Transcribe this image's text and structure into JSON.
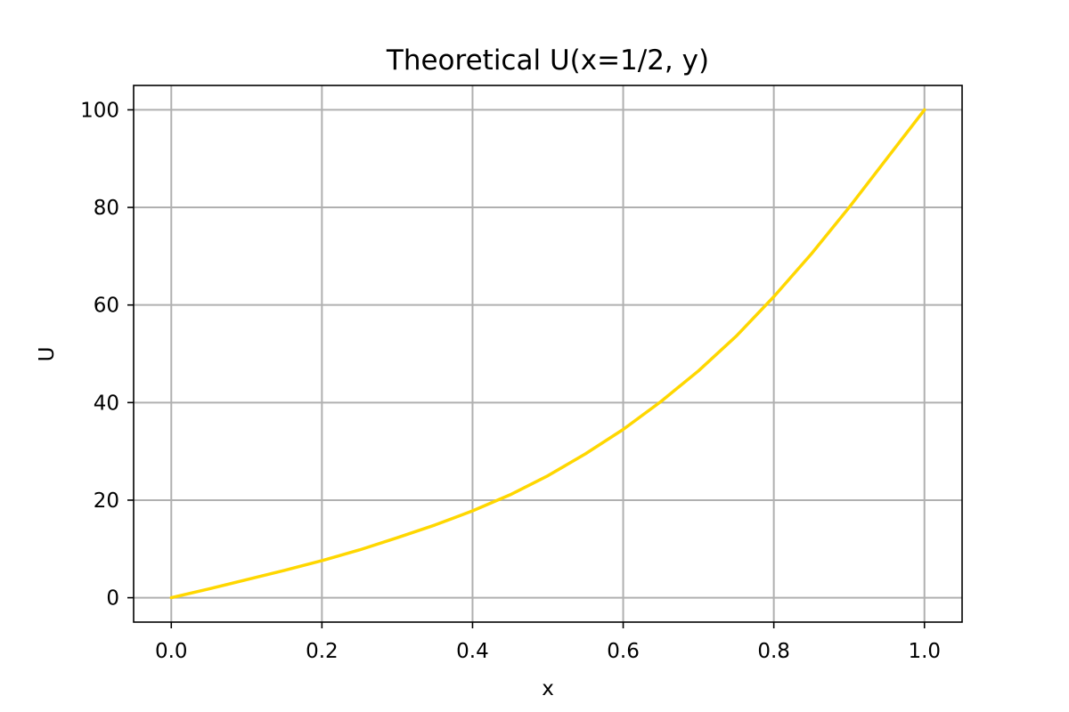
{
  "chart_data": {
    "type": "line",
    "title": "Theoretical U(x=1/2, y)",
    "xlabel": "x",
    "ylabel": "U",
    "xlim": [
      -0.05,
      1.05
    ],
    "ylim": [
      -5,
      105
    ],
    "xticks": [
      0.0,
      0.2,
      0.4,
      0.6,
      0.8,
      1.0
    ],
    "xtick_labels": [
      "0.0",
      "0.2",
      "0.4",
      "0.6",
      "0.8",
      "1.0"
    ],
    "yticks": [
      0,
      20,
      40,
      60,
      80,
      100
    ],
    "ytick_labels": [
      "0",
      "20",
      "40",
      "60",
      "80",
      "100"
    ],
    "grid": true,
    "series": [
      {
        "color": "#FFD700",
        "x": [
          0.0,
          0.05,
          0.1,
          0.15,
          0.2,
          0.25,
          0.3,
          0.35,
          0.4,
          0.45,
          0.5,
          0.55,
          0.6,
          0.65,
          0.7,
          0.75,
          0.8,
          0.85,
          0.9,
          0.95,
          1.0
        ],
        "y": [
          0.0,
          1.8,
          3.7,
          5.6,
          7.6,
          9.8,
          12.3,
          14.9,
          17.8,
          21.1,
          25.0,
          29.5,
          34.5,
          40.2,
          46.5,
          53.6,
          61.7,
          70.5,
          80.0,
          90.0,
          100.0
        ]
      }
    ]
  }
}
